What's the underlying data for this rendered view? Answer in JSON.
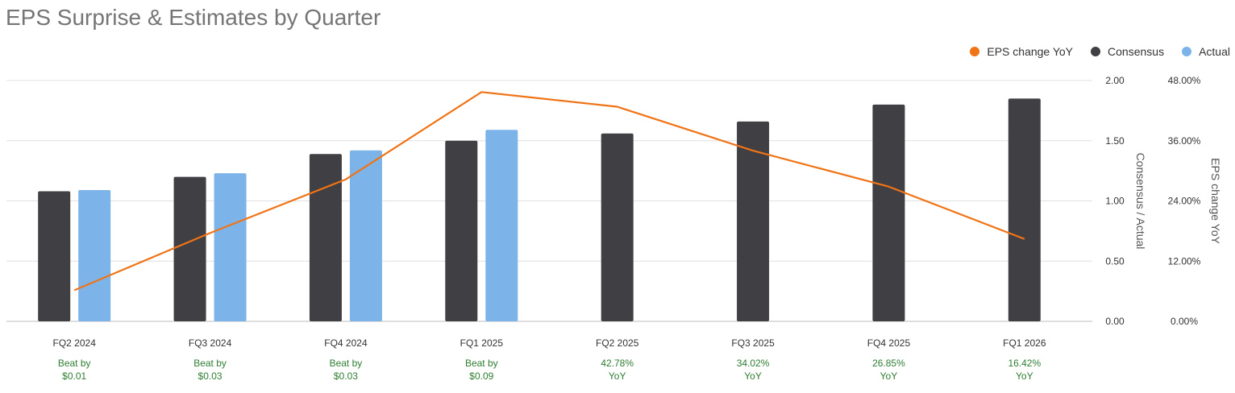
{
  "title": "EPS Surprise & Estimates by Quarter",
  "legend": [
    {
      "label": "EPS change YoY",
      "color": "#f07316"
    },
    {
      "label": "Consensus",
      "color": "#3f3f44"
    },
    {
      "label": "Actual",
      "color": "#7cb4ea"
    }
  ],
  "chart_data": {
    "type": "bar",
    "title": "EPS Surprise & Estimates by Quarter",
    "categories": [
      "FQ2 2024",
      "FQ3 2024",
      "FQ4 2024",
      "FQ1 2025",
      "FQ2 2025",
      "FQ3 2025",
      "FQ4 2025",
      "FQ1 2026"
    ],
    "series": [
      {
        "name": "Consensus",
        "type": "bar",
        "axis": "left",
        "color": "#3f3f44",
        "values": [
          1.08,
          1.2,
          1.39,
          1.5,
          1.56,
          1.66,
          1.8,
          1.85
        ]
      },
      {
        "name": "Actual",
        "type": "bar",
        "axis": "left",
        "color": "#7cb4ea",
        "values": [
          1.09,
          1.23,
          1.42,
          1.59,
          null,
          null,
          null,
          null
        ]
      },
      {
        "name": "EPS change YoY",
        "type": "line",
        "axis": "right",
        "color": "#f07316",
        "values": [
          6.2,
          17.6,
          28.3,
          45.7,
          42.78,
          34.02,
          26.85,
          16.42
        ]
      }
    ],
    "y_left": {
      "label": "Consensus / Actual",
      "ylim": [
        0,
        2.0
      ],
      "ticks": [
        "0.00",
        "0.50",
        "1.00",
        "1.50",
        "2.00"
      ]
    },
    "y_right": {
      "label": "EPS change YoY",
      "ylim": [
        0,
        48
      ],
      "ticks": [
        "0.00%",
        "12.00%",
        "24.00%",
        "36.00%",
        "48.00%"
      ]
    },
    "annotations": [
      [
        "Beat by",
        "$0.01"
      ],
      [
        "Beat by",
        "$0.03"
      ],
      [
        "Beat by",
        "$0.03"
      ],
      [
        "Beat by",
        "$0.09"
      ],
      [
        "42.78%",
        "YoY"
      ],
      [
        "34.02%",
        "YoY"
      ],
      [
        "26.85%",
        "YoY"
      ],
      [
        "16.42%",
        "YoY"
      ]
    ],
    "grid": true,
    "legend_position": "top-right"
  }
}
